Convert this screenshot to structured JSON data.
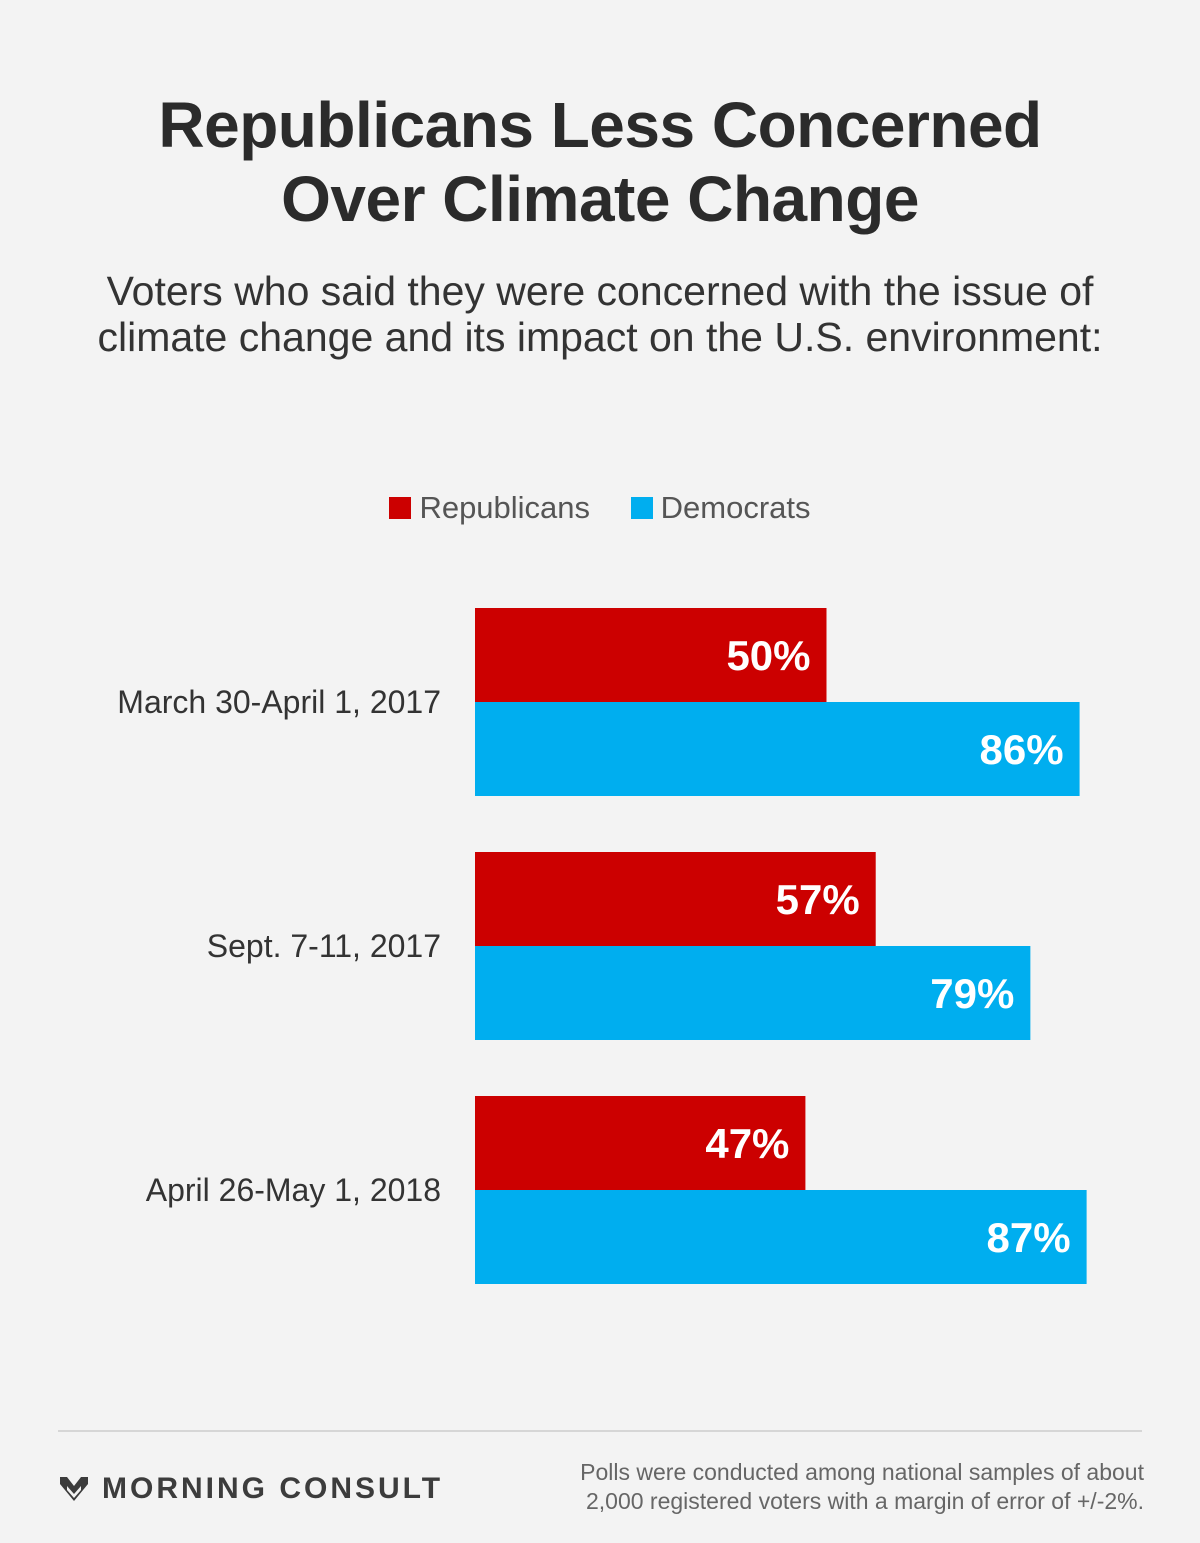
{
  "title": {
    "line1": "Republicans Less Concerned",
    "line2": "Over Climate Change"
  },
  "subtitle": {
    "line1": "Voters who said they were concerned with the issue of",
    "line2": "climate change and its impact on the U.S. environment:"
  },
  "legend": {
    "republicans": "Republicans",
    "democrats": "Democrats"
  },
  "colors": {
    "republicans": "#cc0000",
    "democrats": "#00aeef",
    "background": "#f3f3f3"
  },
  "chart_data": {
    "type": "bar",
    "orientation": "horizontal",
    "categories": [
      "March 30-April 1, 2017",
      "Sept. 7-11, 2017",
      "April 26-May 1, 2018"
    ],
    "series": [
      {
        "name": "Republicans",
        "values": [
          50,
          57,
          47
        ],
        "labels": [
          "50%",
          "57%",
          "47%"
        ]
      },
      {
        "name": "Democrats",
        "values": [
          86,
          79,
          87
        ],
        "labels": [
          "86%",
          "79%",
          "87%"
        ]
      }
    ],
    "xlim": [
      0,
      100
    ],
    "grid": false,
    "legend_position": "top-center"
  },
  "footer": {
    "logo_text": "MORNING CONSULT",
    "logo_icon": "morning-consult-chevron-icon",
    "note_line1": "Polls were conducted among national samples of about",
    "note_line2": "2,000 registered voters with a margin of error of +/-2%."
  }
}
